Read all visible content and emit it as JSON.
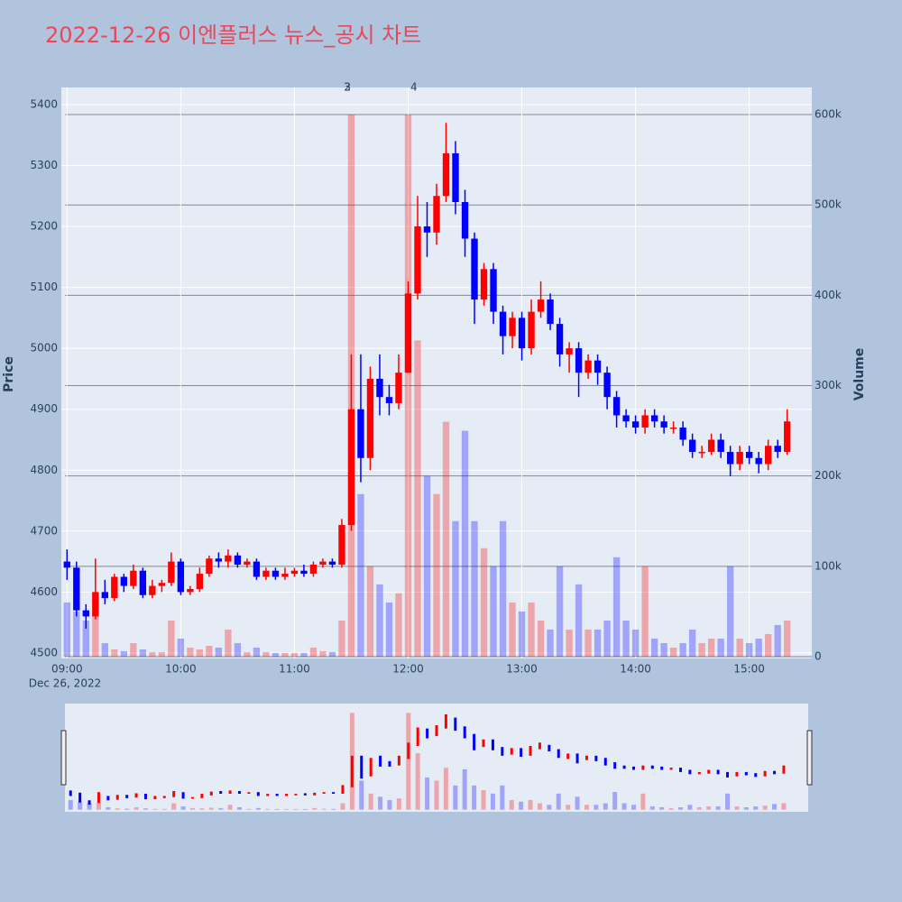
{
  "chart_data": {
    "type": "candlestick",
    "title": "2022-12-26 이엔플러스 뉴스_공시 차트",
    "y_label": "Price",
    "y2_label": "Volume",
    "x_sublabel": "Dec 26, 2022",
    "increasing_color": "#ff0000",
    "decreasing_color": "#0000ff",
    "grid": true,
    "xlim": [
      "2022-12-26 08:57",
      "2022-12-26 15:33"
    ],
    "xticks": [
      {
        "value": "2022-12-26 09:00",
        "label": "09:00"
      },
      {
        "value": "2022-12-26 10:00",
        "label": "10:00"
      },
      {
        "value": "2022-12-26 11:00",
        "label": "11:00"
      },
      {
        "value": "2022-12-26 12:00",
        "label": "12:00"
      },
      {
        "value": "2022-12-26 13:00",
        "label": "13:00"
      },
      {
        "value": "2022-12-26 14:00",
        "label": "14:00"
      },
      {
        "value": "2022-12-26 15:00",
        "label": "15:00"
      }
    ],
    "ylim": [
      4491,
      5428
    ],
    "yticks": [
      4500,
      4600,
      4700,
      4800,
      4900,
      5000,
      5100,
      5200,
      5300,
      5400
    ],
    "y2lim": [
      -2000,
      630000
    ],
    "y2ticks": [
      {
        "value": 0,
        "label": "0"
      },
      {
        "value": 100000,
        "label": "100k"
      },
      {
        "value": 200000,
        "label": "200k"
      },
      {
        "value": 300000,
        "label": "300k"
      },
      {
        "value": 400000,
        "label": "400k"
      },
      {
        "value": 500000,
        "label": "500k"
      },
      {
        "value": 600000,
        "label": "600k"
      }
    ],
    "annotations": [
      {
        "x": "2022-12-26 11:28",
        "text": "2"
      },
      {
        "x": "2022-12-26 11:28",
        "text": "3"
      },
      {
        "x": "2022-12-26 12:03",
        "text": "4"
      }
    ],
    "x": [
      "2022-12-26 09:00",
      "2022-12-26 09:05",
      "2022-12-26 09:10",
      "2022-12-26 09:15",
      "2022-12-26 09:20",
      "2022-12-26 09:25",
      "2022-12-26 09:30",
      "2022-12-26 09:35",
      "2022-12-26 09:40",
      "2022-12-26 09:45",
      "2022-12-26 09:50",
      "2022-12-26 09:55",
      "2022-12-26 10:00",
      "2022-12-26 10:05",
      "2022-12-26 10:10",
      "2022-12-26 10:15",
      "2022-12-26 10:20",
      "2022-12-26 10:25",
      "2022-12-26 10:30",
      "2022-12-26 10:35",
      "2022-12-26 10:40",
      "2022-12-26 10:45",
      "2022-12-26 10:50",
      "2022-12-26 10:55",
      "2022-12-26 11:00",
      "2022-12-26 11:05",
      "2022-12-26 11:10",
      "2022-12-26 11:15",
      "2022-12-26 11:20",
      "2022-12-26 11:25",
      "2022-12-26 11:30",
      "2022-12-26 11:35",
      "2022-12-26 11:40",
      "2022-12-26 11:45",
      "2022-12-26 11:50",
      "2022-12-26 11:55",
      "2022-12-26 12:00",
      "2022-12-26 12:05",
      "2022-12-26 12:10",
      "2022-12-26 12:15",
      "2022-12-26 12:20",
      "2022-12-26 12:25",
      "2022-12-26 12:30",
      "2022-12-26 12:35",
      "2022-12-26 12:40",
      "2022-12-26 12:45",
      "2022-12-26 12:50",
      "2022-12-26 12:55",
      "2022-12-26 13:00",
      "2022-12-26 13:05",
      "2022-12-26 13:10",
      "2022-12-26 13:15",
      "2022-12-26 13:20",
      "2022-12-26 13:25",
      "2022-12-26 13:30",
      "2022-12-26 13:35",
      "2022-12-26 13:40",
      "2022-12-26 13:45",
      "2022-12-26 13:50",
      "2022-12-26 13:55",
      "2022-12-26 14:00",
      "2022-12-26 14:05",
      "2022-12-26 14:10",
      "2022-12-26 14:15",
      "2022-12-26 14:20",
      "2022-12-26 14:25",
      "2022-12-26 14:30",
      "2022-12-26 14:35",
      "2022-12-26 14:40",
      "2022-12-26 14:45",
      "2022-12-26 14:50",
      "2022-12-26 14:55",
      "2022-12-26 15:00",
      "2022-12-26 15:05",
      "2022-12-26 15:10",
      "2022-12-26 15:15",
      "2022-12-26 15:20"
    ],
    "open": [
      4650,
      4640,
      4570,
      4560,
      4600,
      4590,
      4625,
      4610,
      4635,
      4595,
      4610,
      4615,
      4650,
      4600,
      4605,
      4630,
      4655,
      4650,
      4660,
      4645,
      4650,
      4625,
      4635,
      4625,
      4630,
      4635,
      4630,
      4645,
      4650,
      4645,
      4710,
      4900,
      4820,
      4950,
      4920,
      4910,
      4960,
      5090,
      5200,
      5190,
      5250,
      5320,
      5240,
      5180,
      5080,
      5130,
      5060,
      5020,
      5050,
      5000,
      5060,
      5080,
      5040,
      4990,
      5000,
      4960,
      4980,
      4960,
      4920,
      4890,
      4880,
      4870,
      4890,
      4880,
      4870,
      4870,
      4850,
      4830,
      4830,
      4850,
      4830,
      4810,
      4830,
      4820,
      4810,
      4840,
      4830
    ],
    "high": [
      4670,
      4650,
      4580,
      4655,
      4620,
      4630,
      4630,
      4645,
      4640,
      4620,
      4620,
      4665,
      4655,
      4610,
      4640,
      4660,
      4665,
      4670,
      4665,
      4655,
      4655,
      4640,
      4640,
      4640,
      4640,
      4645,
      4650,
      4655,
      4655,
      4720,
      4990,
      4990,
      4970,
      4990,
      4940,
      4990,
      5110,
      5250,
      5240,
      5270,
      5370,
      5340,
      5260,
      5190,
      5140,
      5140,
      5070,
      5060,
      5060,
      5080,
      5110,
      5090,
      5050,
      5010,
      5010,
      4990,
      4990,
      4970,
      4930,
      4900,
      4890,
      4900,
      4900,
      4890,
      4880,
      4880,
      4860,
      4840,
      4860,
      4860,
      4840,
      4840,
      4840,
      4830,
      4850,
      4850,
      4900
    ],
    "low": [
      4620,
      4560,
      4540,
      4555,
      4580,
      4585,
      4600,
      4605,
      4590,
      4590,
      4600,
      4610,
      4595,
      4595,
      4600,
      4625,
      4640,
      4640,
      4640,
      4640,
      4620,
      4620,
      4620,
      4620,
      4625,
      4625,
      4625,
      4640,
      4640,
      4640,
      4700,
      4780,
      4800,
      4890,
      4890,
      4900,
      4960,
      5080,
      5150,
      5170,
      5240,
      5220,
      5150,
      5040,
      5070,
      5040,
      4990,
      5000,
      4980,
      4990,
      5050,
      5030,
      4970,
      4960,
      4920,
      4950,
      4940,
      4900,
      4870,
      4870,
      4860,
      4860,
      4870,
      4860,
      4860,
      4840,
      4820,
      4820,
      4825,
      4820,
      4790,
      4800,
      4810,
      4795,
      4800,
      4820,
      4825
    ],
    "close": [
      4640,
      4570,
      4560,
      4600,
      4590,
      4625,
      4610,
      4635,
      4595,
      4610,
      4615,
      4650,
      4600,
      4605,
      4630,
      4655,
      4650,
      4660,
      4645,
      4650,
      4625,
      4635,
      4625,
      4630,
      4635,
      4630,
      4645,
      4650,
      4645,
      4710,
      4900,
      4820,
      4950,
      4920,
      4910,
      4960,
      5090,
      5200,
      5190,
      5250,
      5320,
      5240,
      5180,
      5080,
      5130,
      5060,
      5020,
      5050,
      5000,
      5060,
      5080,
      5040,
      4990,
      5000,
      4960,
      4980,
      4960,
      4920,
      4890,
      4880,
      4870,
      4890,
      4880,
      4870,
      4870,
      4850,
      4830,
      4830,
      4850,
      4830,
      4810,
      4830,
      4820,
      4810,
      4840,
      4830,
      4880
    ],
    "volume": [
      60000,
      50000,
      40000,
      45000,
      15000,
      8000,
      6000,
      15000,
      8000,
      5000,
      5000,
      40000,
      20000,
      10000,
      8000,
      12000,
      10000,
      30000,
      15000,
      5000,
      10000,
      5000,
      4000,
      4000,
      4000,
      4000,
      10000,
      6000,
      5000,
      40000,
      600000,
      180000,
      100000,
      80000,
      60000,
      70000,
      600000,
      350000,
      200000,
      180000,
      260000,
      150000,
      250000,
      150000,
      120000,
      100000,
      150000,
      60000,
      50000,
      60000,
      40000,
      30000,
      100000,
      30000,
      80000,
      30000,
      30000,
      40000,
      110000,
      40000,
      30000,
      100000,
      20000,
      15000,
      10000,
      15000,
      30000,
      15000,
      20000,
      20000,
      100000,
      20000,
      15000,
      20000,
      25000,
      35000,
      40000
    ]
  }
}
